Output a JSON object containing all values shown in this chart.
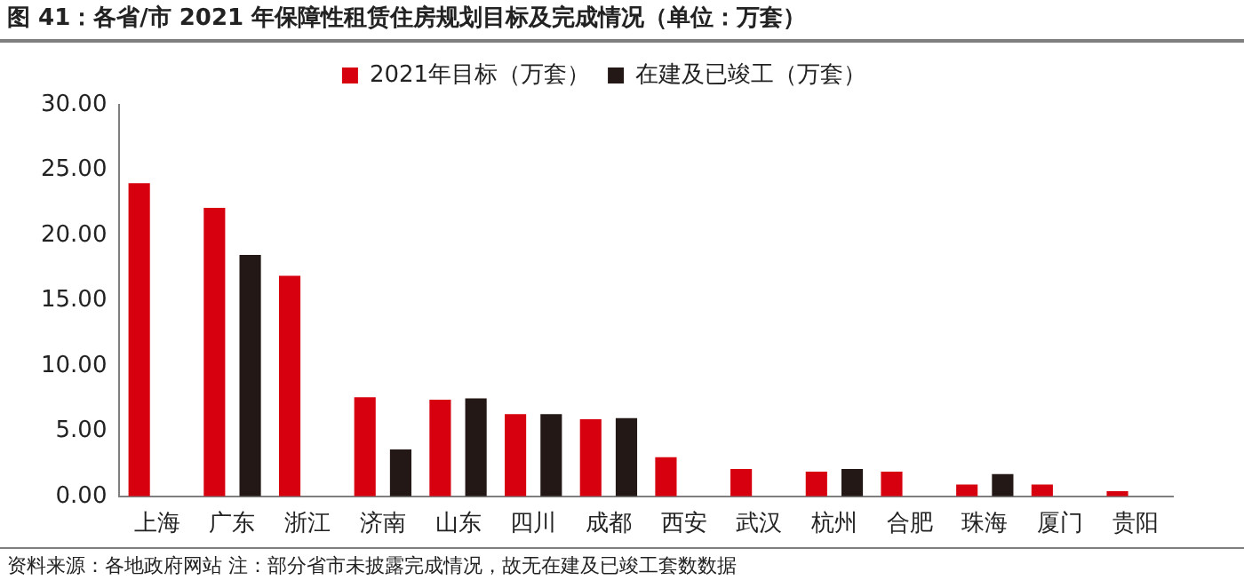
{
  "chart_data": {
    "type": "bar",
    "title": "图 41：各省/市 2021 年保障性租赁住房规划目标及完成情况（单位：万套）",
    "categories": [
      "上海",
      "广东",
      "浙江",
      "济南",
      "山东",
      "四川",
      "成都",
      "西安",
      "武汉",
      "杭州",
      "合肥",
      "珠海",
      "厦门",
      "贵阳"
    ],
    "series": [
      {
        "name": "2021年目标（万套）",
        "color": "#d7000f",
        "values": [
          24,
          22.1,
          16.9,
          7.6,
          7.4,
          6.3,
          5.9,
          3.0,
          2.1,
          1.9,
          1.9,
          0.9,
          0.9,
          0.4
        ]
      },
      {
        "name": "在建及已竣工（万套）",
        "color": "#231815",
        "values": [
          null,
          18.5,
          null,
          3.6,
          7.5,
          6.3,
          6.0,
          null,
          null,
          2.1,
          null,
          1.7,
          null,
          null
        ]
      }
    ],
    "ylim": [
      0,
      30
    ],
    "yticks": [
      {
        "value": 0,
        "label": "0.00"
      },
      {
        "value": 5,
        "label": "5.00"
      },
      {
        "value": 10,
        "label": "10.00"
      },
      {
        "value": 15,
        "label": "15.00"
      },
      {
        "value": 20,
        "label": "20.00"
      },
      {
        "value": 25,
        "label": "25.00"
      },
      {
        "value": 30,
        "label": "30.00"
      }
    ],
    "grid": false,
    "legend": "top",
    "annotations": [
      "资料来源：各地政府网站 注：部分省市未披露完成情况，故无在建及已竣工套数数据"
    ]
  }
}
